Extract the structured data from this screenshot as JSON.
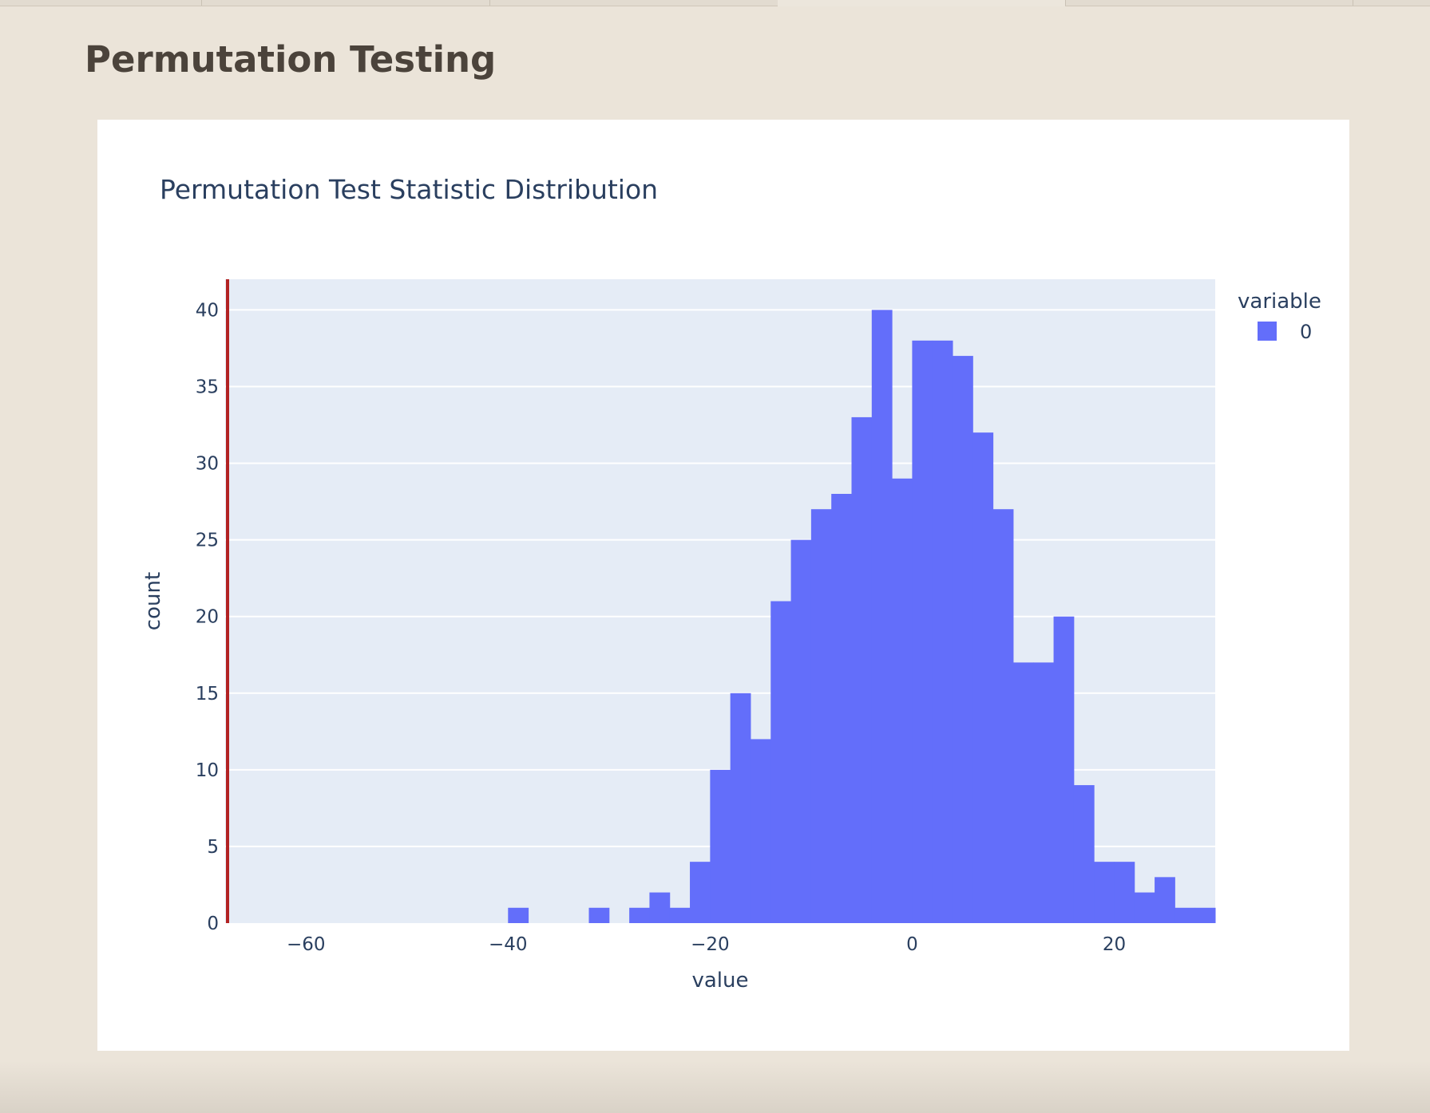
{
  "page": {
    "title": "Permutation Testing"
  },
  "chart_data": {
    "type": "bar",
    "title": "Permutation Test Statistic Distribution",
    "xlabel": "value",
    "ylabel": "count",
    "xlim": [
      -68,
      30
    ],
    "ylim": [
      0,
      42
    ],
    "xticks": [
      -60,
      -40,
      -20,
      0,
      20
    ],
    "xtick_labels": [
      "−60",
      "−40",
      "−20",
      "0",
      "20"
    ],
    "yticks": [
      0,
      5,
      10,
      15,
      20,
      25,
      30,
      35,
      40
    ],
    "ytick_labels": [
      "0",
      "5",
      "10",
      "15",
      "20",
      "25",
      "30",
      "35",
      "40"
    ],
    "grid": true,
    "bin_width": 2,
    "bins": [
      {
        "x0": -40,
        "x1": -38,
        "count": 1
      },
      {
        "x0": -32,
        "x1": -30,
        "count": 1
      },
      {
        "x0": -28,
        "x1": -26,
        "count": 1
      },
      {
        "x0": -26,
        "x1": -24,
        "count": 2
      },
      {
        "x0": -24,
        "x1": -22,
        "count": 1
      },
      {
        "x0": -22,
        "x1": -20,
        "count": 4
      },
      {
        "x0": -20,
        "x1": -18,
        "count": 10
      },
      {
        "x0": -18,
        "x1": -16,
        "count": 15
      },
      {
        "x0": -16,
        "x1": -14,
        "count": 12
      },
      {
        "x0": -14,
        "x1": -12,
        "count": 21
      },
      {
        "x0": -12,
        "x1": -10,
        "count": 25
      },
      {
        "x0": -10,
        "x1": -8,
        "count": 27
      },
      {
        "x0": -8,
        "x1": -6,
        "count": 28
      },
      {
        "x0": -6,
        "x1": -4,
        "count": 33
      },
      {
        "x0": -4,
        "x1": -2,
        "count": 40
      },
      {
        "x0": -2,
        "x1": 0,
        "count": 29
      },
      {
        "x0": 0,
        "x1": 2,
        "count": 38
      },
      {
        "x0": 2,
        "x1": 4,
        "count": 38
      },
      {
        "x0": 4,
        "x1": 6,
        "count": 37
      },
      {
        "x0": 6,
        "x1": 8,
        "count": 32
      },
      {
        "x0": 8,
        "x1": 10,
        "count": 27
      },
      {
        "x0": 10,
        "x1": 12,
        "count": 17
      },
      {
        "x0": 12,
        "x1": 14,
        "count": 17
      },
      {
        "x0": 14,
        "x1": 16,
        "count": 20
      },
      {
        "x0": 16,
        "x1": 18,
        "count": 9
      },
      {
        "x0": 18,
        "x1": 20,
        "count": 4
      },
      {
        "x0": 20,
        "x1": 22,
        "count": 4
      },
      {
        "x0": 22,
        "x1": 24,
        "count": 2
      },
      {
        "x0": 24,
        "x1": 26,
        "count": 3
      },
      {
        "x0": 26,
        "x1": 28,
        "count": 1
      },
      {
        "x0": 28,
        "x1": 30,
        "count": 1
      }
    ],
    "observed_line": {
      "x": -68,
      "color": "#b22222"
    },
    "legend": {
      "title": "variable",
      "placement": "top-right",
      "entries": [
        {
          "label": "0",
          "color": "#636efa"
        }
      ]
    },
    "series_color": "#636efa",
    "plot_bg": "#e5ecf6",
    "grid_color": "#ffffff"
  }
}
